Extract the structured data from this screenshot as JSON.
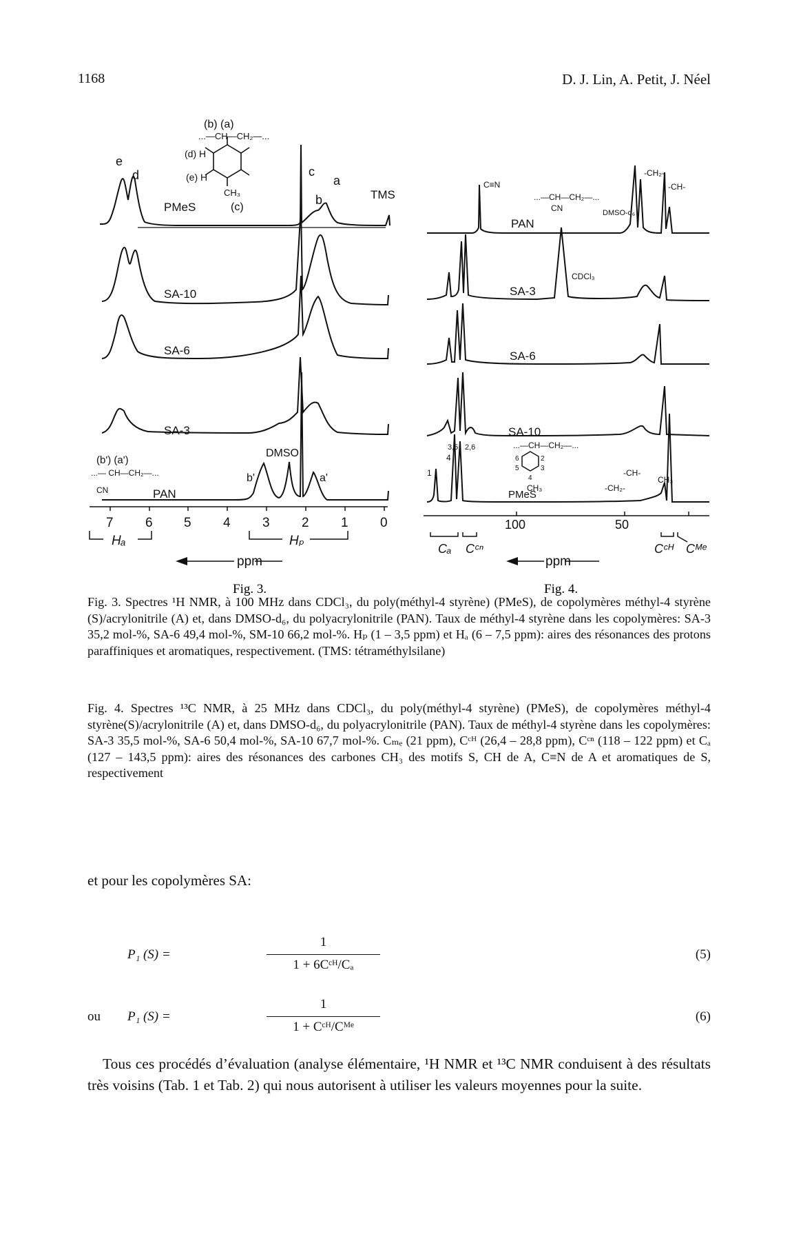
{
  "header": {
    "page_number": "1168",
    "authors": "D. J. Lin, A. Petit, J. Néel"
  },
  "fig3": {
    "label": "Fig. 3.",
    "traces": [
      "PMeS",
      "SA-10",
      "SA-6",
      "SA-3",
      "PAN"
    ],
    "peak_labels": {
      "e": "e",
      "d": "d",
      "c": "c",
      "b": "b",
      "a": "a",
      "tms": "TMS",
      "dmso": "DMSO",
      "b_prime": "b'",
      "a_prime": "a'"
    },
    "structure_pmes": {
      "top": "(b) (a)",
      "chain": "...—CH—CH₂—...",
      "d": "(d) H",
      "e": "(e) H",
      "ch3": "CH₃",
      "c": "(c)"
    },
    "structure_pan": {
      "top": "(b') (a')",
      "chain": "...— CH—CH₂—...",
      "cn": "CN"
    },
    "axis_ticks": [
      "7",
      "6",
      "5",
      "4",
      "3",
      "2",
      "1",
      "0"
    ],
    "range_ha": "Hₐ",
    "range_hp": "Hₚ",
    "axis_label": "ppm"
  },
  "fig4": {
    "label": "Fig. 4.",
    "traces": [
      "PAN",
      "SA-3",
      "SA-6",
      "SA-10",
      "PMeS"
    ],
    "peak_labels": {
      "cn": "C≡N",
      "pan_chain": "...—CH—CH₂—...",
      "pan_cn": "CN",
      "dmso_d6": "DMSO-d₆",
      "ch2": "-CH₂-",
      "ch": "-CH-",
      "cdcl3": "CDCl₃",
      "pmes_chain": "...—CH—CH₂—...",
      "pmes_ch3": "CH₃",
      "ch_lower": "-CH-",
      "ch2_lower": "-CH₂-",
      "ch3_lower": "CH₃",
      "c1": "1",
      "c4": "4",
      "c35": "3,5",
      "c26": "2,6",
      "ring6": "6",
      "ring2": "2",
      "ring5": "5",
      "ring3": "3",
      "ring4": "4"
    },
    "axis_ticks": [
      "100",
      "50"
    ],
    "range_labels": [
      "Cₐ",
      "Cᶜⁿ",
      "Cᶜᴴ",
      "Cᴹᵉ"
    ],
    "axis_label": "ppm"
  },
  "captions": {
    "fig3": "Fig. 3.  Spectres ¹H NMR, à 100 MHz dans CDCl₃, du poly(méthyl-4 styrène) (PMeS), de copolymères méthyl-4 styrène (S)/acrylonitrile (A) et, dans DMSO-d₆, du polyacrylonitrile (PAN). Taux de méthyl-4 styrène dans les copolymères: SA-3 35,2 mol-%, SA-6 49,4 mol-%, SM-10 66,2 mol-%. Hₚ (1 – 3,5 ppm) et Hₐ (6 – 7,5 ppm): aires des résonances des protons paraffiniques et aromatiques, respectivement. (TMS: tétraméthylsilane)",
    "fig4": "Fig. 4.  Spectres ¹³C NMR, à 25 MHz dans CDCl₃, du poly(méthyl-4 styrène) (PMeS), de copolymères méthyl-4 styrène(S)/acrylonitrile (A) et, dans DMSO-d₆, du polyacrylonitrile (PAN). Taux de méthyl-4 styrène dans les copolymères: SA-3 35,5 mol-%, SA-6 50,4 mol-%, SA-10 67,7 mol-%. Cₘₑ (21 ppm), Cᶜᴴ (26,4 – 28,8 ppm), Cᶜⁿ (118 – 122 ppm) et Cₐ (127 – 143,5 ppm): aires des résonances des carbones CH₃ des motifs S, CH de A, C≡N de A et aromatiques de S, respectivement"
  },
  "body": {
    "lead": "et pour les copolymères SA:",
    "eq5": {
      "lhs": "P₁ (S) =",
      "num": "1",
      "den": "1 + 6Cᶜᴴ/Cₐ",
      "tag": "(5)"
    },
    "eq6": {
      "conj": "ou",
      "lhs": "P₁ (S) =",
      "num": "1",
      "den": "1 + Cᶜᴴ/Cᴹᵉ",
      "tag": "(6)"
    },
    "paragraph": "Tous ces procédés d’évaluation (analyse élémentaire, ¹H NMR et ¹³C NMR conduisent à des résultats très voisins (Tab. 1 et Tab. 2) qui nous autorisent à utiliser les valeurs moyennes pour la suite."
  }
}
